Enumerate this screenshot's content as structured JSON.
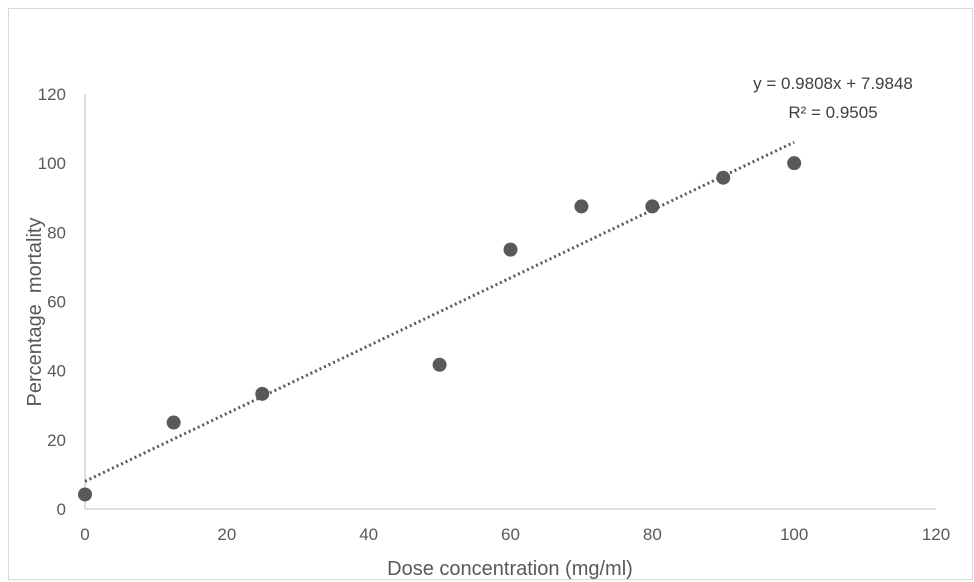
{
  "chart_data": {
    "type": "scatter",
    "title": "",
    "xlabel": "Dose concentration (mg/ml)",
    "ylabel": "Percentage  mortality",
    "xlim": [
      0,
      120
    ],
    "ylim": [
      0,
      120
    ],
    "xticks": [
      0,
      20,
      40,
      60,
      80,
      100,
      120
    ],
    "yticks": [
      0,
      20,
      40,
      60,
      80,
      100,
      120
    ],
    "grid": false,
    "legend": "none",
    "series": [
      {
        "points": [
          {
            "x": 0,
            "y": 4.2
          },
          {
            "x": 12.5,
            "y": 25
          },
          {
            "x": 25,
            "y": 33.3
          },
          {
            "x": 50,
            "y": 41.7
          },
          {
            "x": 60,
            "y": 75
          },
          {
            "x": 70,
            "y": 87.5
          },
          {
            "x": 80,
            "y": 87.5
          },
          {
            "x": 90,
            "y": 95.8
          },
          {
            "x": 100,
            "y": 100
          }
        ],
        "color": "#595959"
      }
    ],
    "trendline": {
      "type": "linear",
      "slope": 0.9808,
      "intercept": 7.9848,
      "x_range": [
        0,
        100
      ],
      "style": "dotted",
      "color": "#595959",
      "equation_label": "y = 0.9808x + 7.9848",
      "r2_label": "R² = 0.9505"
    }
  }
}
